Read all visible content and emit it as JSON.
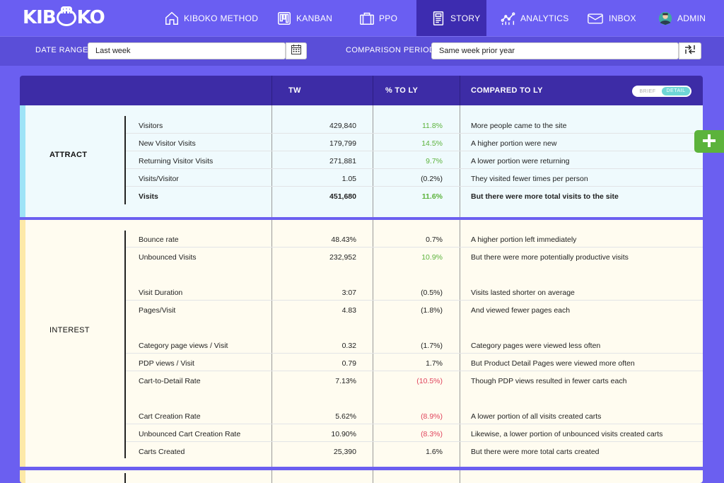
{
  "brand": {
    "logo_text_left": "KIB",
    "logo_text_right": "KO"
  },
  "nav": [
    {
      "label": "KIBOKO METHOD",
      "icon": "home-icon"
    },
    {
      "label": "KANBAN",
      "icon": "kanban-icon"
    },
    {
      "label": "PPO",
      "icon": "briefcase-icon"
    },
    {
      "label": "STORY",
      "icon": "story-icon",
      "active": true
    },
    {
      "label": "ANALYTICS",
      "icon": "analytics-icon"
    },
    {
      "label": "INBOX",
      "icon": "inbox-icon"
    },
    {
      "label": "ADMIN",
      "icon": "avatar-icon"
    }
  ],
  "filters": {
    "date_range_label": "DATE RANGE",
    "date_range_value": "Last week",
    "comparison_label": "COMPARISON PERIOD",
    "comparison_value": "Same week prior year"
  },
  "table": {
    "headers": {
      "tw": "TW",
      "pct": "% TO LY",
      "compared": "COMPARED TO LY"
    },
    "toggle": {
      "brief": "BRIEF",
      "detail": "DETAIL",
      "selected": "DETAIL"
    },
    "sections": [
      {
        "label": "ATTRACT",
        "accent_color": "#9ee3f7",
        "rows": [
          {
            "metric": "Visitors",
            "tw": "429,840",
            "pct": "11.8%",
            "trend": "pos",
            "compared": "More people came to the site"
          },
          {
            "metric": "New Visitor Visits",
            "tw": "179,799",
            "pct": "14.5%",
            "trend": "pos",
            "compared": "A higher portion were new"
          },
          {
            "metric": "Returning Visitor Visits",
            "tw": "271,881",
            "pct": "9.7%",
            "trend": "pos",
            "compared": "A lower portion were returning"
          },
          {
            "metric": "Visits/Visitor",
            "tw": "1.05",
            "pct": "(0.2%)",
            "trend": "neu",
            "compared": "They visited fewer times per person"
          },
          {
            "metric": "Visits",
            "tw": "451,680",
            "pct": "11.6%",
            "trend": "pos",
            "compared": "But there were more total visits to the site",
            "bold": true
          }
        ]
      },
      {
        "label": "INTEREST",
        "accent_color": "#fde9a8",
        "rows": [
          {
            "metric": "Bounce rate",
            "tw": "48.43%",
            "pct": "0.7%",
            "trend": "neu",
            "compared": "A higher portion left immediately"
          },
          {
            "metric": "Unbounced Visits",
            "tw": "232,952",
            "pct": "10.9%",
            "trend": "pos",
            "compared": "But there were more potentially productive visits"
          },
          {
            "metric": "Visit Duration",
            "tw": "3:07",
            "pct": "(0.5%)",
            "trend": "neu",
            "compared": "Visits lasted shorter on average"
          },
          {
            "metric": "Pages/Visit",
            "tw": "4.83",
            "pct": "(1.8%)",
            "trend": "neu",
            "compared": "And viewed fewer pages each"
          },
          {
            "metric": "Category page views / Visit",
            "tw": "0.32",
            "pct": "(1.7%)",
            "trend": "neu",
            "compared": "Category pages were viewed less often"
          },
          {
            "metric": "PDP views / Visit",
            "tw": "0.79",
            "pct": "1.7%",
            "trend": "neu",
            "compared": "But Product Detail Pages were viewed more often"
          },
          {
            "metric": "Cart-to-Detail Rate",
            "tw": "7.13%",
            "pct": "(10.5%)",
            "trend": "neg",
            "compared": "Though PDP views resulted in fewer carts each"
          },
          {
            "metric": "Cart Creation Rate",
            "tw": "5.62%",
            "pct": "(8.9%)",
            "trend": "neg",
            "compared": "A lower portion of all visits created carts"
          },
          {
            "metric": "Unbounced Cart Creation Rate",
            "tw": "10.90%",
            "pct": "(8.3%)",
            "trend": "neg",
            "compared": "Likewise, a lower portion of unbounced visits created carts"
          },
          {
            "metric": "Carts Created",
            "tw": "25,390",
            "pct": "1.6%",
            "trend": "neu",
            "compared": "But there were more total carts created"
          }
        ]
      }
    ]
  },
  "colors": {
    "nav_bg": "#6a5ef2",
    "active_nav": "#3d2cb0",
    "header_bg": "#3d2ca6",
    "positive": "#5cb33c",
    "negative": "#e0435c"
  }
}
